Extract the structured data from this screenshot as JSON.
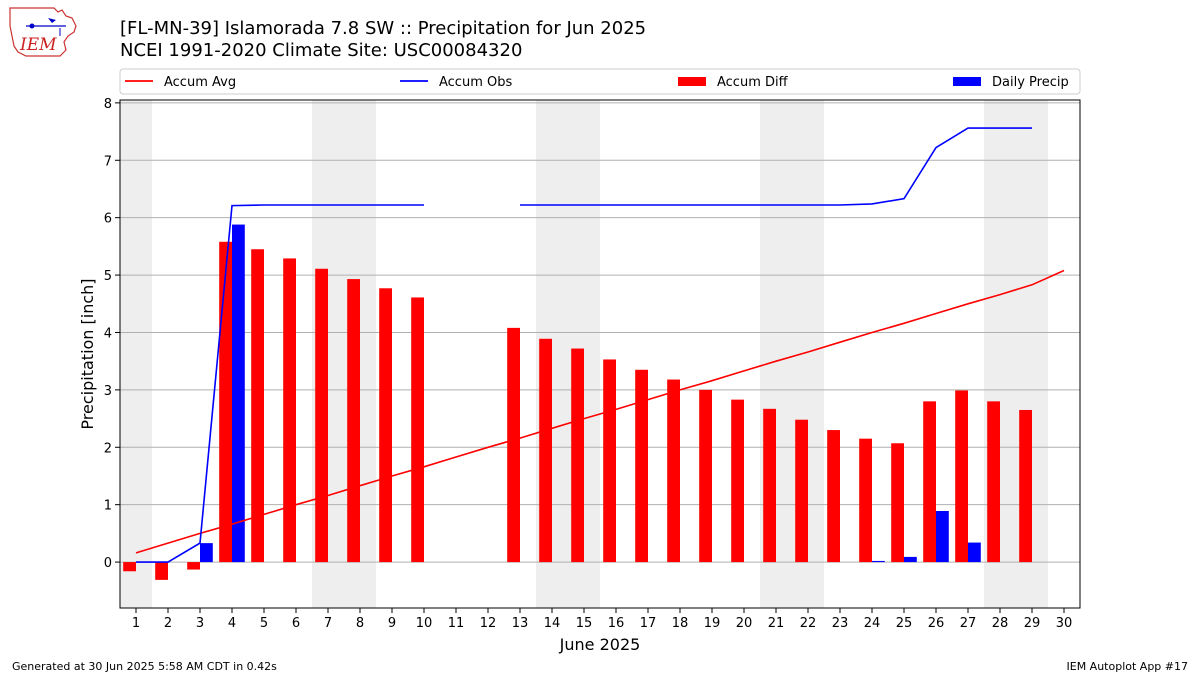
{
  "header": {
    "title_line1": "[FL-MN-39] Islamorada 7.8 SW :: Precipitation for Jun 2025",
    "title_line2": "NCEI 1991-2020 Climate Site: USC00084320"
  },
  "logo": {
    "text": "IEM"
  },
  "footer": {
    "left": "Generated at 30 Jun 2025 5:58 AM CDT in 0.42s",
    "right": "IEM Autoplot App #17"
  },
  "colors": {
    "accum_avg": "#ff0000",
    "accum_obs": "#0000ff",
    "accum_diff": "#ff0000",
    "daily_precip": "#0000ff",
    "weekend_shade": "#eeeeee",
    "grid": "#b0b0b0"
  },
  "chart_data": {
    "type": "bar",
    "title": "[FL-MN-39] Islamorada 7.8 SW :: Precipitation for Jun 2025",
    "subtitle": "NCEI 1991-2020 Climate Site: USC00084320",
    "xlabel": "June 2025",
    "ylabel": "Precipitation [inch]",
    "x": [
      1,
      2,
      3,
      4,
      5,
      6,
      7,
      8,
      9,
      10,
      11,
      12,
      13,
      14,
      15,
      16,
      17,
      18,
      19,
      20,
      21,
      22,
      23,
      24,
      25,
      26,
      27,
      28,
      29,
      30
    ],
    "xlim": [
      0.5,
      30.5
    ],
    "ylim": [
      -0.8,
      8.05
    ],
    "yticks": [
      0,
      1,
      2,
      3,
      4,
      5,
      6,
      7,
      8
    ],
    "grid": "horizontal",
    "legend_position": "top, above plot",
    "shaded_weekend_spans": [
      [
        0.5,
        1.5
      ],
      [
        6.5,
        8.5
      ],
      [
        13.5,
        15.5
      ],
      [
        20.5,
        22.5
      ],
      [
        27.5,
        29.5
      ]
    ],
    "series": [
      {
        "name": "Accum Avg",
        "kind": "line",
        "values": [
          0.16,
          0.33,
          0.5,
          0.66,
          0.83,
          1.0,
          1.16,
          1.33,
          1.5,
          1.66,
          1.83,
          2.0,
          2.16,
          2.33,
          2.5,
          2.66,
          2.83,
          3.0,
          3.16,
          3.33,
          3.5,
          3.66,
          3.83,
          4.0,
          4.16,
          4.33,
          4.5,
          4.66,
          4.83,
          5.08
        ]
      },
      {
        "name": "Accum Obs",
        "kind": "line",
        "values": [
          0.0,
          0.0,
          0.33,
          6.21,
          6.22,
          6.22,
          6.22,
          6.22,
          6.22,
          6.22,
          null,
          null,
          6.22,
          6.22,
          6.22,
          6.22,
          6.22,
          6.22,
          6.22,
          6.22,
          6.22,
          6.22,
          6.22,
          6.24,
          6.33,
          7.22,
          7.56,
          7.56,
          7.56,
          null
        ]
      },
      {
        "name": "Accum Diff",
        "kind": "bar",
        "values": [
          -0.16,
          -0.31,
          -0.13,
          5.58,
          5.45,
          5.29,
          5.11,
          4.93,
          4.77,
          4.61,
          null,
          null,
          4.08,
          3.89,
          3.72,
          3.53,
          3.35,
          3.18,
          3.0,
          2.83,
          2.67,
          2.48,
          2.3,
          2.15,
          2.07,
          2.8,
          2.99,
          2.8,
          2.65,
          null
        ]
      },
      {
        "name": "Daily Precip",
        "kind": "bar",
        "values": [
          0.0,
          0.0,
          0.33,
          5.88,
          0.0,
          0.0,
          0.0,
          0.0,
          0.0,
          0.0,
          null,
          null,
          0.0,
          0.0,
          0.0,
          0.0,
          0.0,
          0.0,
          0.0,
          0.0,
          0.0,
          0.0,
          0.0,
          0.02,
          0.09,
          0.89,
          0.34,
          0.0,
          0.0,
          null
        ]
      }
    ]
  }
}
